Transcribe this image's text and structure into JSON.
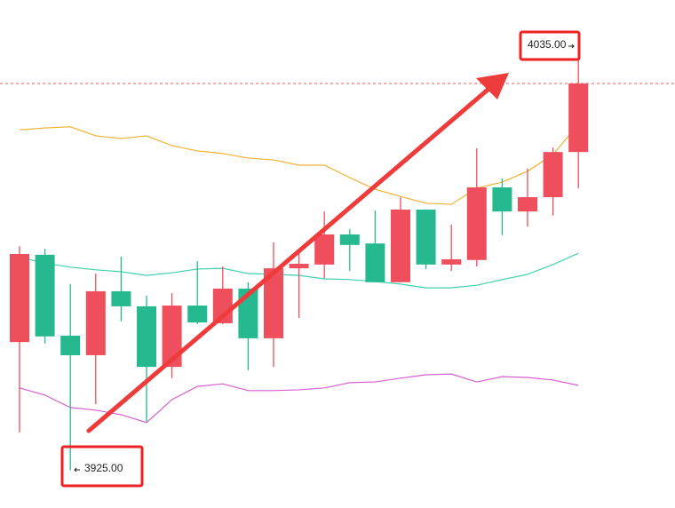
{
  "chart_data": {
    "type": "candlestick",
    "ylim": [
      3915,
      4050
    ],
    "up_color": "#ef4f5c",
    "down_color": "#26b98f",
    "candles": {
      "open": [
        3959.1,
        3982.3,
        3960.8,
        3955.6,
        3972.6,
        3968.6,
        3952.5,
        3968.8,
        3964.1,
        3973.3,
        3960.1,
        3978.7,
        3979.7,
        3987.7,
        3985.3,
        3975.0,
        3994.3,
        3979.7,
        3980.9,
        4000.2,
        3993.8,
        3997.6,
        4009.6
      ],
      "high": [
        3984.6,
        3983.9,
        3974.5,
        3977.3,
        3981.8,
        3971.4,
        3972.1,
        3980.6,
        3979.2,
        3975.0,
        3985.6,
        3982.7,
        3993.8,
        3989.1,
        3994.1,
        3997.6,
        3994.3,
        3990.3,
        4010.6,
        4002.6,
        4005.2,
        4010.8,
        4035
      ],
      "low": [
        3935.1,
        3958.7,
        3925,
        3942.6,
        3964.6,
        3937.9,
        3949.5,
        3963.9,
        3963.9,
        3951.6,
        3952.5,
        3965.5,
        3976.1,
        3978.0,
        3975.0,
        3975.0,
        3978.5,
        3978.0,
        3979.2,
        3987.5,
        3989.8,
        3992.7,
        4000.0
      ],
      "close": [
        3982.5,
        3960.6,
        3955.6,
        3972.6,
        3968.6,
        3952.5,
        3968.8,
        3964.3,
        3973.3,
        3960.1,
        3978.7,
        3979.9,
        3987.7,
        3984.9,
        3975.0,
        3994.3,
        3979.7,
        3981.1,
        4000.2,
        3993.8,
        3997.6,
        4009.6,
        4027.8
      ]
    },
    "lines": [
      {
        "color": "#f2b233",
        "values": [
          4015.5,
          4016.0,
          4016.3,
          4013.9,
          4013.2,
          4013.9,
          4011.3,
          4009.9,
          4009.2,
          4008.0,
          4007.5,
          4006.1,
          4006.1,
          4002.8,
          3999.7,
          3997.8,
          3996.0,
          3995.7,
          4000.0,
          4001.6,
          4004.5,
          4008.9,
          4017.0
        ]
      },
      {
        "color": "#3fd0b0",
        "values": [
          3981.6,
          3980.1,
          3979.0,
          3978.3,
          3977.8,
          3976.8,
          3977.5,
          3978.5,
          3978.7,
          3977.3,
          3977.1,
          3976.8,
          3975.9,
          3975.7,
          3975.2,
          3974.5,
          3973.5,
          3973.5,
          3974.2,
          3975.7,
          3977.1,
          3979.7,
          3982.7
        ]
      },
      {
        "color": "#d85fd0",
        "values": [
          3946.9,
          3945.0,
          3941.7,
          3941.0,
          3939.8,
          3937.7,
          3943.8,
          3947.3,
          3948.0,
          3946.2,
          3946.2,
          3946.4,
          3946.9,
          3948.3,
          3948.5,
          3949.5,
          3950.4,
          3950.6,
          3948.5,
          3949.9,
          3949.7,
          3949.0,
          3947.6
        ]
      }
    ],
    "price_line": 4027.8,
    "annotations": [
      {
        "value": 4035,
        "label": "4035.00"
      },
      {
        "value": 3925,
        "label": "3925.00"
      }
    ]
  }
}
